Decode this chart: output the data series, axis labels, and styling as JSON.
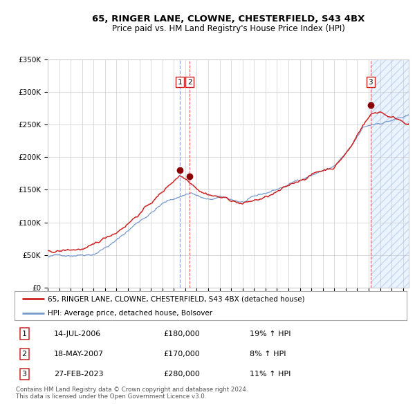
{
  "title": "65, RINGER LANE, CLOWNE, CHESTERFIELD, S43 4BX",
  "subtitle": "Price paid vs. HM Land Registry's House Price Index (HPI)",
  "legend_line1": "65, RINGER LANE, CLOWNE, CHESTERFIELD, S43 4BX (detached house)",
  "legend_line2": "HPI: Average price, detached house, Bolsover",
  "table_entries": [
    {
      "num": 1,
      "date": "14-JUL-2006",
      "price": "£180,000",
      "change": "19% ↑ HPI"
    },
    {
      "num": 2,
      "date": "18-MAY-2007",
      "price": "£170,000",
      "change": "8% ↑ HPI"
    },
    {
      "num": 3,
      "date": "27-FEB-2023",
      "price": "£280,000",
      "change": "11% ↑ HPI"
    }
  ],
  "footnote1": "Contains HM Land Registry data © Crown copyright and database right 2024.",
  "footnote2": "This data is licensed under the Open Government Licence v3.0.",
  "hpi_color": "#7799cc",
  "price_color": "#cc2222",
  "dot_color": "#880000",
  "shade_color": "#ddeeff",
  "hatch_color": "#aabbdd",
  "ylim": [
    0,
    350000
  ],
  "yticks": [
    0,
    50000,
    100000,
    150000,
    200000,
    250000,
    300000,
    350000
  ],
  "sale_dates": [
    2006.54,
    2007.38,
    2023.16
  ],
  "sale_prices": [
    180000,
    170000,
    280000
  ],
  "background_color": "#ffffff",
  "grid_color": "#cccccc",
  "xlim_start": 1995.0,
  "xlim_end": 2026.5
}
